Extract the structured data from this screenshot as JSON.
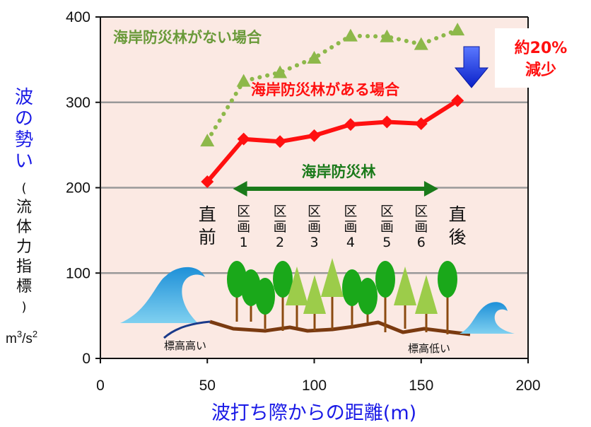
{
  "chart_data": {
    "type": "line",
    "xlabel": "波打ち際からの距離(m)",
    "ylabel": "波の勢い",
    "ylabel_sub": "(流体力指標)",
    "yunit_base": "m",
    "yunit_exp1": "3",
    "yunit_mid": "/s",
    "yunit_exp2": "2",
    "xlim": [
      0,
      200
    ],
    "ylim": [
      0,
      400
    ],
    "xticks": [
      0,
      50,
      100,
      150,
      200
    ],
    "yticks": [
      0,
      100,
      200,
      300,
      400
    ],
    "gridlines_y": [
      100,
      200,
      300
    ],
    "series": [
      {
        "name": "海岸防災林がない場合",
        "color": "#8db84a",
        "label_color": "#6a9a3a",
        "style": "dotted",
        "marker": "triangle",
        "x": [
          50,
          67,
          84,
          100,
          117,
          134,
          150,
          167
        ],
        "y": [
          255,
          325,
          335,
          352,
          378,
          377,
          368,
          385
        ]
      },
      {
        "name": "海岸防災林がある場合",
        "color": "#ff1010",
        "label_color": "#ff1010",
        "style": "solid",
        "marker": "diamond",
        "x": [
          50,
          67,
          84,
          100,
          117,
          134,
          150,
          167
        ],
        "y": [
          207,
          257,
          254,
          261,
          274,
          277,
          275,
          302
        ]
      }
    ],
    "annotations": {
      "forest_label": "海岸防災林",
      "forest_range": [
        62,
        158
      ],
      "sections": [
        "区画1",
        "区画2",
        "区画3",
        "区画4",
        "区画5",
        "区画6"
      ],
      "before": "直前",
      "after": "直後",
      "high_label": "標高高い",
      "low_label": "標高低い",
      "reduction_line1": "約20%",
      "reduction_line2": "減少"
    },
    "colors": {
      "forest_arrow": "#1a7a1a",
      "down_arrow": "#1a3cff",
      "grid": "#999999",
      "plot_bg": "#fbe9e3"
    }
  }
}
